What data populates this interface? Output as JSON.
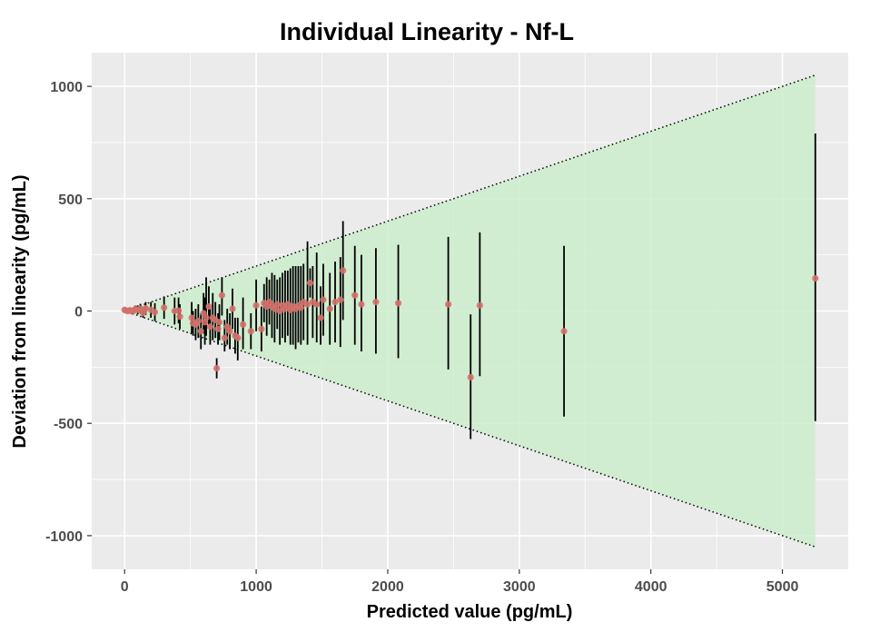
{
  "chart_data": {
    "type": "scatter",
    "title": "Individual Linearity - Nf-L",
    "xlabel": "Predicted value (pg/mL)",
    "ylabel": "Deviation from linearity (pg/mL)",
    "xlim": [
      -250,
      5500
    ],
    "ylim": [
      -1150,
      1150
    ],
    "x_ticks": [
      0,
      1000,
      2000,
      3000,
      4000,
      5000
    ],
    "x_tick_labels": [
      "0",
      "1000",
      "2000",
      "3000",
      "4000",
      "5000"
    ],
    "y_ticks": [
      -1000,
      -500,
      0,
      500,
      1000
    ],
    "y_tick_labels": [
      "-1000",
      "-500",
      "0",
      "500",
      "1000"
    ],
    "grid": true,
    "colors": {
      "panel_background": "#ebebeb",
      "grid_line": "#ffffff",
      "tolerance_fill": "#ccedcc",
      "point": "#d4706a",
      "error_bar": "#000000",
      "tolerance_line": "#000000"
    },
    "tolerance_band": {
      "x": [
        0,
        5250
      ],
      "upper": [
        0,
        1050
      ],
      "lower": [
        0,
        -1050
      ]
    },
    "points": [
      {
        "x": 0,
        "y": 5,
        "low": -5,
        "high": 15
      },
      {
        "x": 10,
        "y": 2,
        "low": -8,
        "high": 12
      },
      {
        "x": 25,
        "y": 0,
        "low": -10,
        "high": 10
      },
      {
        "x": 40,
        "y": 3,
        "low": -10,
        "high": 16
      },
      {
        "x": 60,
        "y": -3,
        "low": -15,
        "high": 10
      },
      {
        "x": 80,
        "y": 8,
        "low": -8,
        "high": 24
      },
      {
        "x": 100,
        "y": 5,
        "low": -15,
        "high": 25
      },
      {
        "x": 120,
        "y": 10,
        "low": -12,
        "high": 32
      },
      {
        "x": 140,
        "y": -8,
        "low": -30,
        "high": 15
      },
      {
        "x": 160,
        "y": 12,
        "low": -18,
        "high": 40
      },
      {
        "x": 200,
        "y": 5,
        "low": -30,
        "high": 40
      },
      {
        "x": 230,
        "y": -5,
        "low": -45,
        "high": 35
      },
      {
        "x": 300,
        "y": 15,
        "low": -35,
        "high": 65
      },
      {
        "x": 380,
        "y": 0,
        "low": -60,
        "high": 60
      },
      {
        "x": 410,
        "y": 2,
        "low": -55,
        "high": 60
      },
      {
        "x": 420,
        "y": -25,
        "low": -80,
        "high": 30
      },
      {
        "x": 510,
        "y": -30,
        "low": -100,
        "high": 40
      },
      {
        "x": 520,
        "y": -55,
        "low": -110,
        "high": 0
      },
      {
        "x": 540,
        "y": -60,
        "low": -130,
        "high": 10
      },
      {
        "x": 560,
        "y": -45,
        "low": -120,
        "high": 30
      },
      {
        "x": 580,
        "y": -90,
        "low": -170,
        "high": -10
      },
      {
        "x": 600,
        "y": -10,
        "low": -100,
        "high": 80
      },
      {
        "x": 610,
        "y": -50,
        "low": -150,
        "high": 60
      },
      {
        "x": 620,
        "y": -30,
        "low": -110,
        "high": 150
      },
      {
        "x": 640,
        "y": 20,
        "low": -60,
        "high": 110
      },
      {
        "x": 650,
        "y": -70,
        "low": -150,
        "high": 10
      },
      {
        "x": 670,
        "y": -30,
        "low": -130,
        "high": 80
      },
      {
        "x": 690,
        "y": -40,
        "low": -120,
        "high": 40
      },
      {
        "x": 700,
        "y": -255,
        "low": -300,
        "high": -210
      },
      {
        "x": 710,
        "y": -80,
        "low": -150,
        "high": -10
      },
      {
        "x": 720,
        "y": -50,
        "low": -130,
        "high": 30
      },
      {
        "x": 740,
        "y": 70,
        "low": -20,
        "high": 150
      },
      {
        "x": 760,
        "y": -120,
        "low": -180,
        "high": -40
      },
      {
        "x": 780,
        "y": -70,
        "low": -150,
        "high": 10
      },
      {
        "x": 800,
        "y": -90,
        "low": -170,
        "high": -10
      },
      {
        "x": 820,
        "y": 10,
        "low": -80,
        "high": 100
      },
      {
        "x": 840,
        "y": -110,
        "low": -190,
        "high": -30
      },
      {
        "x": 860,
        "y": -120,
        "low": -220,
        "high": -30
      },
      {
        "x": 900,
        "y": -60,
        "low": -170,
        "high": 60
      },
      {
        "x": 960,
        "y": -90,
        "low": -170,
        "high": -10
      },
      {
        "x": 1000,
        "y": 25,
        "low": -90,
        "high": 140
      },
      {
        "x": 1040,
        "y": -80,
        "low": -180,
        "high": 20
      },
      {
        "x": 1060,
        "y": 35,
        "low": -50,
        "high": 120
      },
      {
        "x": 1080,
        "y": 20,
        "low": -110,
        "high": 150
      },
      {
        "x": 1100,
        "y": 40,
        "low": -60,
        "high": 140
      },
      {
        "x": 1120,
        "y": 20,
        "low": -120,
        "high": 170
      },
      {
        "x": 1140,
        "y": 10,
        "low": -140,
        "high": 160
      },
      {
        "x": 1160,
        "y": 30,
        "low": -80,
        "high": 140
      },
      {
        "x": 1180,
        "y": 0,
        "low": -150,
        "high": 150
      },
      {
        "x": 1200,
        "y": 25,
        "low": -120,
        "high": 170
      },
      {
        "x": 1220,
        "y": 10,
        "low": -140,
        "high": 180
      },
      {
        "x": 1240,
        "y": 30,
        "low": -110,
        "high": 180
      },
      {
        "x": 1260,
        "y": 5,
        "low": -150,
        "high": 190
      },
      {
        "x": 1280,
        "y": 20,
        "low": -150,
        "high": 200
      },
      {
        "x": 1300,
        "y": 10,
        "low": -170,
        "high": 200
      },
      {
        "x": 1320,
        "y": 25,
        "low": -140,
        "high": 200
      },
      {
        "x": 1340,
        "y": 15,
        "low": -150,
        "high": 200
      },
      {
        "x": 1360,
        "y": 40,
        "low": -130,
        "high": 210
      },
      {
        "x": 1390,
        "y": 30,
        "low": -150,
        "high": 310
      },
      {
        "x": 1410,
        "y": 125,
        "low": 60,
        "high": 190
      },
      {
        "x": 1430,
        "y": 40,
        "low": -120,
        "high": 200
      },
      {
        "x": 1460,
        "y": 30,
        "low": -140,
        "high": 260
      },
      {
        "x": 1490,
        "y": -30,
        "low": -150,
        "high": 110
      },
      {
        "x": 1510,
        "y": 50,
        "low": -110,
        "high": 210
      },
      {
        "x": 1560,
        "y": 10,
        "low": -150,
        "high": 170
      },
      {
        "x": 1600,
        "y": 40,
        "low": -140,
        "high": 220
      },
      {
        "x": 1640,
        "y": 50,
        "low": -160,
        "high": 240
      },
      {
        "x": 1660,
        "y": 180,
        "low": -40,
        "high": 400
      },
      {
        "x": 1750,
        "y": 70,
        "low": -150,
        "high": 290
      },
      {
        "x": 1800,
        "y": 30,
        "low": -180,
        "high": 250
      },
      {
        "x": 1910,
        "y": 40,
        "low": -190,
        "high": 280
      },
      {
        "x": 2080,
        "y": 35,
        "low": -210,
        "high": 295
      },
      {
        "x": 2460,
        "y": 30,
        "low": -260,
        "high": 330
      },
      {
        "x": 2630,
        "y": -295,
        "low": -570,
        "high": -15
      },
      {
        "x": 2700,
        "y": 25,
        "low": -290,
        "high": 350
      },
      {
        "x": 3340,
        "y": -90,
        "low": -470,
        "high": 290
      },
      {
        "x": 5250,
        "y": 145,
        "low": -490,
        "high": 790
      }
    ]
  }
}
